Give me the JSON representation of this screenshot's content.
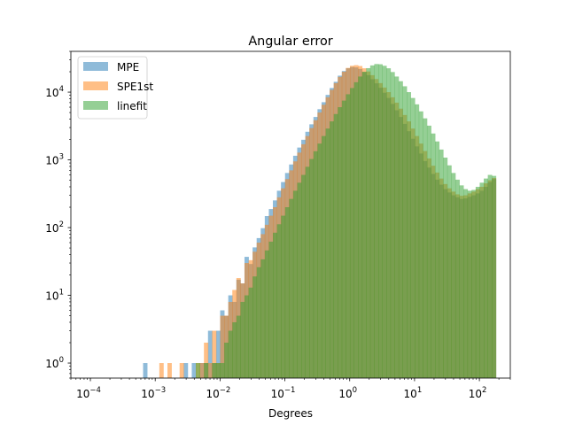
{
  "chart_data": {
    "type": "bar",
    "title": "Angular error",
    "xlabel": "Degrees",
    "ylabel": "",
    "x_scale": "log",
    "y_scale": "log",
    "xlim": [
      5e-05,
      300
    ],
    "ylim": [
      0.6,
      40000
    ],
    "x_ticks": [
      {
        "value": 0.0001,
        "base": "10",
        "exp": "−4"
      },
      {
        "value": 0.001,
        "base": "10",
        "exp": "−3"
      },
      {
        "value": 0.01,
        "base": "10",
        "exp": "−2"
      },
      {
        "value": 0.1,
        "base": "10",
        "exp": "−1"
      },
      {
        "value": 1,
        "base": "10",
        "exp": "0"
      },
      {
        "value": 10,
        "base": "10",
        "exp": "1"
      },
      {
        "value": 100,
        "base": "10",
        "exp": "2"
      }
    ],
    "y_ticks": [
      {
        "value": 1,
        "base": "10",
        "exp": "0"
      },
      {
        "value": 10,
        "base": "10",
        "exp": "1"
      },
      {
        "value": 100,
        "base": "10",
        "exp": "2"
      },
      {
        "value": 1000,
        "base": "10",
        "exp": "3"
      },
      {
        "value": 10000,
        "base": "10",
        "exp": "4"
      }
    ],
    "legend_position": "top-left",
    "bin_range": [
      0.0001,
      180
    ],
    "bin_count": 100,
    "series": [
      {
        "name": "MPE",
        "color": "#1f77b4",
        "alpha": 0.5,
        "counts": [
          0,
          0,
          0,
          0,
          0,
          0,
          0,
          0,
          0,
          0,
          0,
          0,
          0,
          1,
          0,
          0,
          0,
          0,
          0,
          0,
          0,
          0,
          0,
          1,
          0,
          1,
          0,
          1,
          1,
          3,
          1,
          3,
          6,
          5,
          10,
          8,
          17,
          15,
          37,
          29,
          51,
          70,
          98,
          148,
          188,
          252,
          350,
          470,
          640,
          855,
          1150,
          1520,
          1980,
          2600,
          3350,
          4300,
          5600,
          7100,
          9100,
          11500,
          14200,
          17500,
          20500,
          22500,
          23500,
          23200,
          22000,
          19800,
          17800,
          15500,
          13500,
          11600,
          9800,
          8200,
          6700,
          5400,
          4300,
          3400,
          2650,
          2050,
          1580,
          1240,
          960,
          770,
          620,
          510,
          430,
          370,
          330,
          300,
          280,
          265,
          270,
          285,
          300,
          320,
          350,
          400,
          470,
          520
        ]
      },
      {
        "name": "SPE1st",
        "color": "#ff7f0e",
        "alpha": 0.5,
        "counts": [
          0,
          0,
          0,
          0,
          0,
          0,
          0,
          0,
          0,
          0,
          0,
          0,
          0,
          0,
          0,
          0,
          0,
          1,
          0,
          1,
          0,
          0,
          1,
          0,
          0,
          0,
          1,
          1,
          2,
          1,
          3,
          1,
          5,
          5,
          8,
          12,
          18,
          15,
          30,
          33,
          44,
          60,
          80,
          110,
          150,
          200,
          280,
          380,
          520,
          700,
          950,
          1280,
          1700,
          2250,
          2950,
          3850,
          5000,
          6500,
          8400,
          10800,
          13600,
          16800,
          20000,
          22800,
          24500,
          25000,
          24300,
          22500,
          20200,
          17800,
          15600,
          13600,
          11700,
          10000,
          8400,
          7000,
          5700,
          4600,
          3700,
          2900,
          2250,
          1740,
          1350,
          1050,
          820,
          650,
          530,
          440,
          380,
          340,
          310,
          295,
          300,
          320,
          340,
          370,
          400,
          450,
          500,
          540
        ]
      },
      {
        "name": "linefit",
        "color": "#2ca02c",
        "alpha": 0.5,
        "counts": [
          0,
          0,
          0,
          0,
          0,
          0,
          0,
          0,
          0,
          0,
          0,
          0,
          0,
          0,
          0,
          0,
          0,
          0,
          0,
          0,
          0,
          0,
          0,
          0,
          0,
          0,
          1,
          0,
          1,
          0,
          1,
          1,
          1,
          2,
          3,
          4,
          5,
          8,
          10,
          13,
          19,
          26,
          34,
          46,
          62,
          84,
          112,
          150,
          200,
          265,
          350,
          460,
          600,
          790,
          1030,
          1340,
          1740,
          2250,
          2900,
          3700,
          4750,
          6000,
          7500,
          9300,
          11500,
          14000,
          17000,
          20000,
          22600,
          24800,
          26000,
          25800,
          24500,
          22500,
          19800,
          17000,
          14500,
          12200,
          10000,
          8200,
          6600,
          5200,
          4100,
          3200,
          2450,
          1870,
          1420,
          1080,
          830,
          640,
          510,
          420,
          370,
          350,
          360,
          400,
          460,
          530,
          600,
          580
        ]
      }
    ]
  }
}
